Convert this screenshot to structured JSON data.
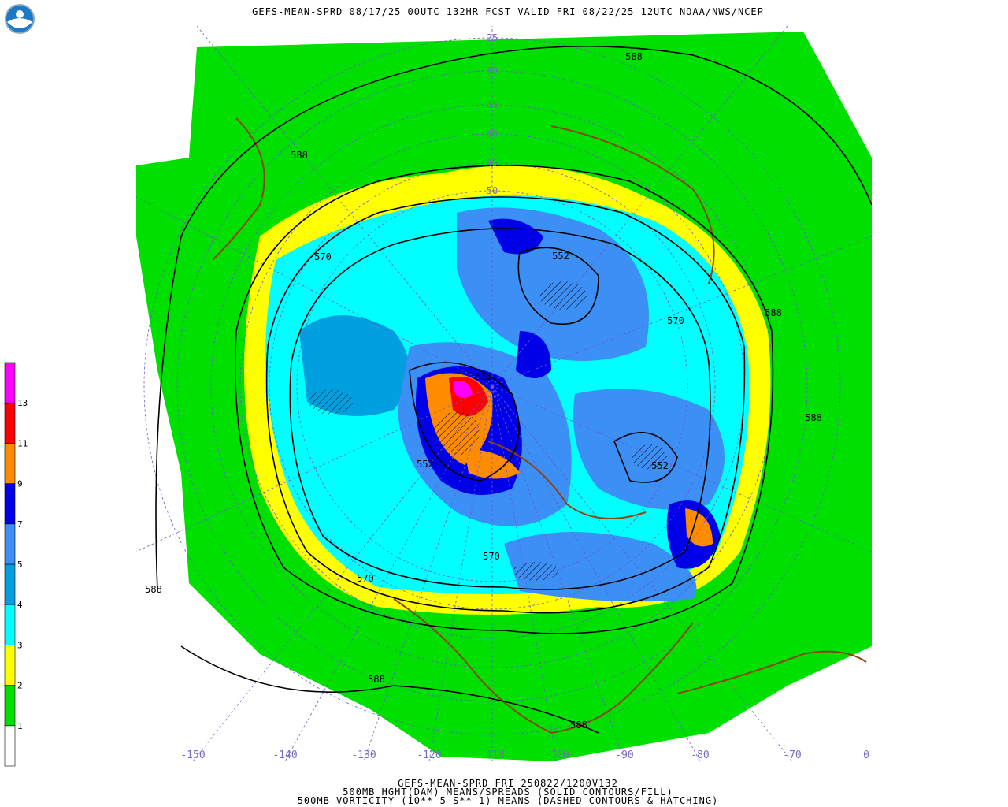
{
  "header": {
    "title": "GEFS-MEAN-SPRD 08/17/25 00UTC 132HR FCST VALID FRI 08/22/25 12UTC NOAA/NWS/NCEP"
  },
  "footer": {
    "lines": [
      "GEFS-MEAN-SPRD FRI 250822/1200V132",
      "500MB HGHT(DAM) MEANS/SPREADS (SOLID CONTOURS/FILL)",
      "500MB VORTICITY (10**-5 S**-1) MEANS (DASHED CONTOURS & HATCHING)"
    ]
  },
  "colorbar": {
    "labels": [
      1,
      2,
      3,
      4,
      5,
      7,
      9,
      11,
      13
    ]
  },
  "map": {
    "longitude_labels": [
      -150,
      -140,
      -130,
      -120,
      -110,
      -100,
      -90,
      -80,
      -70,
      0
    ],
    "latitude_labels": [
      25,
      30,
      35,
      40,
      45,
      50
    ],
    "contour_labels": [
      588,
      588,
      570,
      552,
      570,
      588,
      552,
      588,
      552,
      552,
      570,
      570,
      588,
      588,
      588
    ]
  }
}
